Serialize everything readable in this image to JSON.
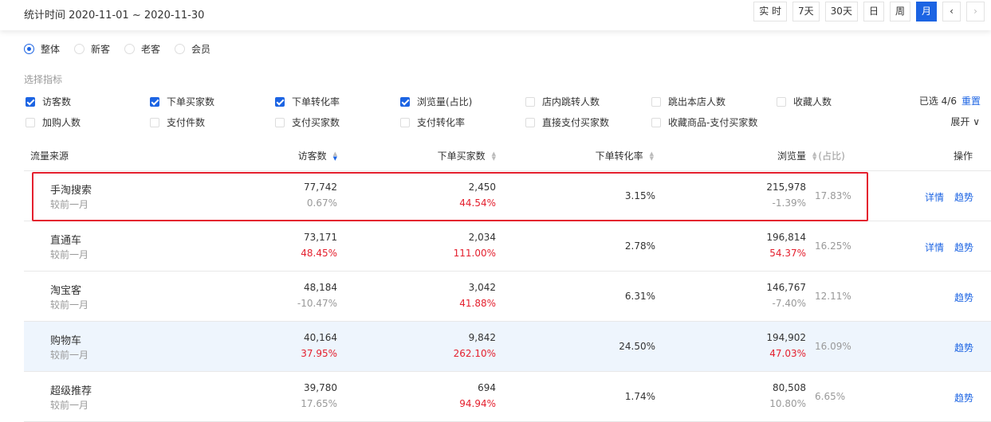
{
  "header": {
    "date_range": "统计时间 2020-11-01 ~ 2020-11-30",
    "periods": [
      {
        "label": "实 时",
        "active": false
      },
      {
        "label": "7天",
        "active": false
      },
      {
        "label": "30天",
        "active": false
      },
      {
        "label": "日",
        "active": false
      },
      {
        "label": "周",
        "active": false
      },
      {
        "label": "月",
        "active": true
      }
    ],
    "prev": "‹",
    "next": "›"
  },
  "segments": [
    {
      "label": "整体",
      "selected": true
    },
    {
      "label": "新客",
      "selected": false
    },
    {
      "label": "老客",
      "selected": false
    },
    {
      "label": "会员",
      "selected": false
    }
  ],
  "metrics": {
    "label": "选择指标",
    "items": [
      {
        "label": "访客数",
        "checked": true
      },
      {
        "label": "下单买家数",
        "checked": true
      },
      {
        "label": "下单转化率",
        "checked": true
      },
      {
        "label": "浏览量(占比)",
        "checked": true
      },
      {
        "label": "店内跳转人数",
        "checked": false
      },
      {
        "label": "跳出本店人数",
        "checked": false
      },
      {
        "label": "收藏人数",
        "checked": false
      },
      {
        "label": "加购人数",
        "checked": false
      },
      {
        "label": "支付件数",
        "checked": false
      },
      {
        "label": "支付买家数",
        "checked": false
      },
      {
        "label": "支付转化率",
        "checked": false
      },
      {
        "label": "直接支付买家数",
        "checked": false
      },
      {
        "label": "收藏商品-支付买家数",
        "checked": false
      }
    ],
    "selected_count": "已选 4/6",
    "reset": "重置",
    "expand": "展开 ∨"
  },
  "table": {
    "columns": {
      "source": "流量来源",
      "visitors": "访客数",
      "buyers": "下单买家数",
      "conv": "下单转化率",
      "views": "浏览量",
      "share": "(占比)",
      "actions": "操作"
    },
    "compare_label": "较前一月",
    "rows": [
      {
        "source": "手淘搜索",
        "visitors": "77,742",
        "visitors_chg": "0.67%",
        "visitors_up": false,
        "buyers": "2,450",
        "buyers_chg": "44.54%",
        "buyers_up": true,
        "conv": "3.15%",
        "views": "215,978",
        "views_chg": "-1.39%",
        "views_up": false,
        "share": "17.83%",
        "detail": "详情",
        "trend": "趋势",
        "highlighted": true
      },
      {
        "source": "直通车",
        "visitors": "73,171",
        "visitors_chg": "48.45%",
        "visitors_up": true,
        "buyers": "2,034",
        "buyers_chg": "111.00%",
        "buyers_up": true,
        "conv": "2.78%",
        "views": "196,814",
        "views_chg": "54.37%",
        "views_up": true,
        "share": "16.25%",
        "detail": "详情",
        "trend": "趋势"
      },
      {
        "source": "淘宝客",
        "visitors": "48,184",
        "visitors_chg": "-10.47%",
        "visitors_up": false,
        "buyers": "3,042",
        "buyers_chg": "41.88%",
        "buyers_up": true,
        "conv": "6.31%",
        "views": "146,767",
        "views_chg": "-7.40%",
        "views_up": false,
        "share": "12.11%",
        "trend": "趋势"
      },
      {
        "source": "购物车",
        "visitors": "40,164",
        "visitors_chg": "37.95%",
        "visitors_up": true,
        "buyers": "9,842",
        "buyers_chg": "262.10%",
        "buyers_up": true,
        "conv": "24.50%",
        "views": "194,902",
        "views_chg": "47.03%",
        "views_up": true,
        "share": "16.09%",
        "trend": "趋势",
        "hover": true
      },
      {
        "source": "超级推荐",
        "visitors": "39,780",
        "visitors_chg": "17.65%",
        "visitors_up": false,
        "buyers": "694",
        "buyers_chg": "94.94%",
        "buyers_up": true,
        "conv": "1.74%",
        "views": "80,508",
        "views_chg": "10.80%",
        "views_up": false,
        "share": "6.65%",
        "trend": "趋势"
      }
    ]
  },
  "colors": {
    "accent": "#1c64e3",
    "up": "#e4202e",
    "highlight_border": "#e4202e",
    "hover_row": "#eef5fd"
  }
}
